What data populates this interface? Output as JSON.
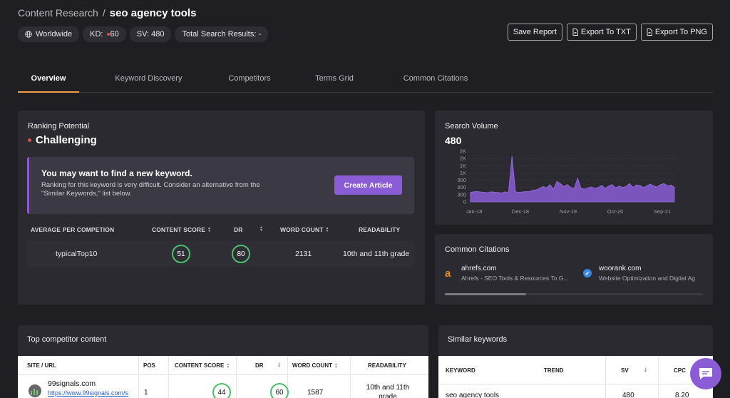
{
  "breadcrumb": {
    "parent": "Content Research",
    "separator": "/",
    "current": "seo agency tools"
  },
  "chips": {
    "location": "Worldwide",
    "kd_label": "KD:",
    "kd_value": "60",
    "sv": "SV: 480",
    "total": "Total Search Results: -"
  },
  "actions": {
    "save": "Save Report",
    "export_txt": "Export To TXT",
    "export_png": "Export To PNG"
  },
  "tabs": [
    "Overview",
    "Keyword Discovery",
    "Competitors",
    "Terms Grid",
    "Common Citations"
  ],
  "ranking": {
    "title": "Ranking Potential",
    "status": "Challenging",
    "status_color": "#e04c4c",
    "alert_heading": "You may want to find a new keyword.",
    "alert_text": "Ranking for this keyword is very difficult. Consider an alternative from the \"Similar Keywords,\" list below.",
    "cta": "Create Article",
    "headers": [
      "AVERAGE PER COMPETION",
      "CONTENT SCORE",
      "DR",
      "WORD COUNT",
      "READABILITY"
    ],
    "row": {
      "label": "typicalTop10",
      "content_score": "51",
      "dr": "80",
      "word_count": "2131",
      "readability": "10th and 11th grade"
    }
  },
  "search_volume": {
    "title": "Search Volume",
    "value": "480",
    "y_ticks": [
      "2K",
      "2K",
      "1K",
      "1K",
      "900",
      "600",
      "300",
      "0"
    ],
    "x_ticks": [
      "Jan-18",
      "Dec-18",
      "Nov-19",
      "Oct-20",
      "Sep-21"
    ]
  },
  "chart_data": {
    "type": "area",
    "title": "Search Volume",
    "x_ticks": [
      "Jan-18",
      "Dec-18",
      "Nov-19",
      "Oct-20",
      "Sep-21"
    ],
    "y_ticks": [
      "0",
      "300",
      "600",
      "900",
      "1K",
      "1K",
      "2K",
      "2K"
    ],
    "ylim": [
      0,
      2100
    ],
    "grid": true,
    "values": [
      390,
      420,
      430,
      410,
      400,
      380,
      420,
      400,
      390,
      370,
      420,
      380,
      1900,
      420,
      390,
      410,
      430,
      420,
      480,
      500,
      560,
      640,
      580,
      720,
      520,
      850,
      760,
      640,
      720,
      600,
      560,
      980,
      560,
      530,
      580,
      620,
      560,
      600,
      680,
      560,
      660,
      720,
      580,
      660,
      600,
      640,
      760,
      600,
      700,
      680,
      600,
      660,
      740,
      660,
      620,
      720,
      760,
      660,
      700,
      600
    ],
    "series_color": "#8a5cd6"
  },
  "citations": {
    "title": "Common Citations",
    "items": [
      {
        "icon": "a",
        "name": "ahrefs.com",
        "desc": "Ahrefs - SEO Tools & Resources To G..."
      },
      {
        "icon": "✔",
        "name": "woorank.com",
        "desc": "Website Optimization and Digital Ag"
      }
    ]
  },
  "competitors": {
    "title": "Top competitor content",
    "headers": [
      "SITE / URL",
      "POS",
      "CONTENT SCORE",
      "DR",
      "WORD COUNT",
      "READABILITY"
    ],
    "row": {
      "site": "99signals.com",
      "url": "https://www.99signals.com/s",
      "pos": "1",
      "content_score": "44",
      "dr": "60",
      "word_count": "1587",
      "readability": "10th and 11th grade"
    }
  },
  "similar": {
    "title": "Similar keywords",
    "headers": [
      "KEYWORD",
      "TREND",
      "SV",
      "CPC"
    ],
    "row": {
      "keyword": "seo agency tools",
      "sv": "480",
      "cpc": "8.20"
    }
  }
}
